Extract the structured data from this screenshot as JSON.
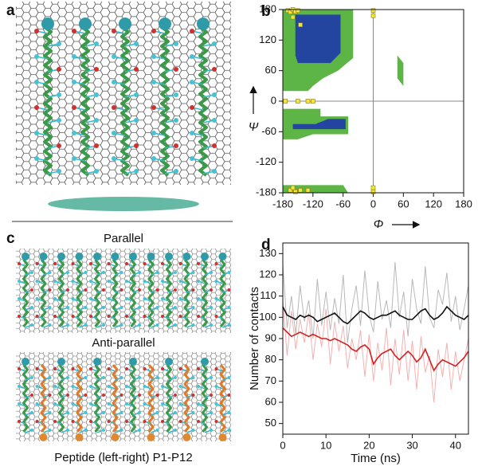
{
  "panels": {
    "a": {
      "label": "a"
    },
    "c": {
      "label": "c",
      "top_caption": "Parallel",
      "middle_caption": "Anti-parallel",
      "bottom_caption": "Peptide (left-right) P1-P12"
    }
  },
  "chart_data": [
    {
      "type": "scatter",
      "panel_label": "b",
      "x_label": "Φ",
      "y_label": "Ψ",
      "xlim": [
        -180,
        180
      ],
      "ylim": [
        -180,
        180
      ],
      "xticks": [
        -180,
        -120,
        -60,
        0,
        60,
        120,
        180
      ],
      "yticks": [
        -180,
        -120,
        -60,
        0,
        60,
        120,
        180
      ],
      "regions": [
        {
          "color": "#5cb544",
          "x": [
            -180,
            -40,
            -40,
            -70,
            -100,
            -120,
            -130,
            -180
          ],
          "y": [
            180,
            180,
            85,
            60,
            45,
            30,
            20,
            20
          ]
        },
        {
          "color": "#2345a0",
          "x": [
            -155,
            -65,
            -65,
            -85,
            -150,
            -155
          ],
          "y": [
            170,
            170,
            95,
            75,
            75,
            90
          ]
        },
        {
          "color": "#5cb544",
          "x": [
            -180,
            -105,
            -105,
            -50,
            -50,
            -120,
            -150,
            -180
          ],
          "y": [
            -15,
            -15,
            -30,
            -30,
            -65,
            -65,
            -75,
            -75
          ]
        },
        {
          "color": "#2345a0",
          "x": [
            -160,
            -115,
            -90,
            -55,
            -55,
            -160
          ],
          "y": [
            -45,
            -45,
            -35,
            -35,
            -55,
            -55
          ]
        },
        {
          "color": "#5cb544",
          "x": [
            -180,
            -60,
            -50,
            -180
          ],
          "y": [
            -165,
            -165,
            -180,
            -180
          ]
        },
        {
          "color": "#5cb544",
          "x": [
            48,
            60,
            60,
            48
          ],
          "y": [
            90,
            75,
            30,
            45
          ]
        }
      ],
      "series": [
        {
          "color": "#f2e63a",
          "x": [
            -170,
            -165,
            -160,
            -155,
            -150,
            -160,
            -145,
            -175,
            -150,
            -130,
            -120,
            -165,
            -155,
            -145,
            -130,
            -160,
            0,
            0,
            0,
            0
          ],
          "y": [
            178,
            175,
            180,
            176,
            178,
            165,
            150,
            0,
            0,
            0,
            0,
            -175,
            -178,
            -175,
            -175,
            -170,
            178,
            168,
            -178,
            -170
          ]
        }
      ]
    },
    {
      "type": "line",
      "panel_label": "d",
      "x_label": "Time (ns)",
      "y_label": "Number of contacts",
      "xlim": [
        0,
        43
      ],
      "ylim": [
        45,
        135
      ],
      "xticks": [
        0,
        10,
        20,
        30,
        40
      ],
      "yticks": [
        50,
        60,
        70,
        80,
        90,
        100,
        110,
        120,
        130
      ],
      "x": [
        0,
        1,
        2,
        3,
        4,
        5,
        6,
        7,
        8,
        9,
        10,
        11,
        12,
        13,
        14,
        15,
        16,
        17,
        18,
        19,
        20,
        21,
        22,
        23,
        24,
        25,
        26,
        27,
        28,
        29,
        30,
        31,
        32,
        33,
        34,
        35,
        36,
        37,
        38,
        39,
        40,
        41,
        42,
        43
      ],
      "series": [
        {
          "color": "#b8b8b8",
          "width": 1,
          "values": [
            125,
            95,
            110,
            92,
            115,
            98,
            108,
            90,
            118,
            96,
            112,
            94,
            109,
            97,
            120,
            88,
            104,
            115,
            96,
            122,
            101,
            93,
            117,
            99,
            108,
            95,
            126,
            100,
            112,
            91,
            118,
            104,
            97,
            124,
            100,
            95,
            113,
            106,
            121,
            98,
            110,
            94,
            104,
            115
          ]
        },
        {
          "color": "#f6b0b0",
          "width": 1,
          "values": [
            108,
            82,
            103,
            85,
            99,
            88,
            102,
            80,
            97,
            86,
            104,
            78,
            98,
            84,
            96,
            76,
            90,
            80,
            94,
            72,
            92,
            70,
            88,
            75,
            95,
            68,
            90,
            73,
            94,
            70,
            89,
            66,
            91,
            74,
            82,
            60,
            85,
            72,
            88,
            66,
            84,
            70,
            80,
            90
          ]
        },
        {
          "color": "#111111",
          "width": 1.6,
          "values": [
            105,
            101,
            100,
            99,
            101,
            100,
            101,
            100,
            98,
            99,
            100,
            101,
            102,
            100,
            98,
            97,
            99,
            101,
            103,
            102,
            100,
            99,
            100,
            101,
            101,
            102,
            103,
            101,
            100,
            99,
            99,
            101,
            103,
            104,
            101,
            99,
            100,
            102,
            105,
            103,
            101,
            100,
            99,
            101
          ]
        },
        {
          "color": "#d42020",
          "width": 1.6,
          "values": [
            95,
            93,
            91,
            92,
            93,
            92,
            91,
            92,
            91,
            90,
            90,
            89,
            90,
            89,
            88,
            87,
            85,
            84,
            86,
            87,
            85,
            78,
            81,
            83,
            84,
            85,
            82,
            80,
            82,
            84,
            82,
            79,
            81,
            85,
            80,
            75,
            78,
            80,
            79,
            78,
            77,
            79,
            81,
            84
          ]
        }
      ]
    }
  ]
}
